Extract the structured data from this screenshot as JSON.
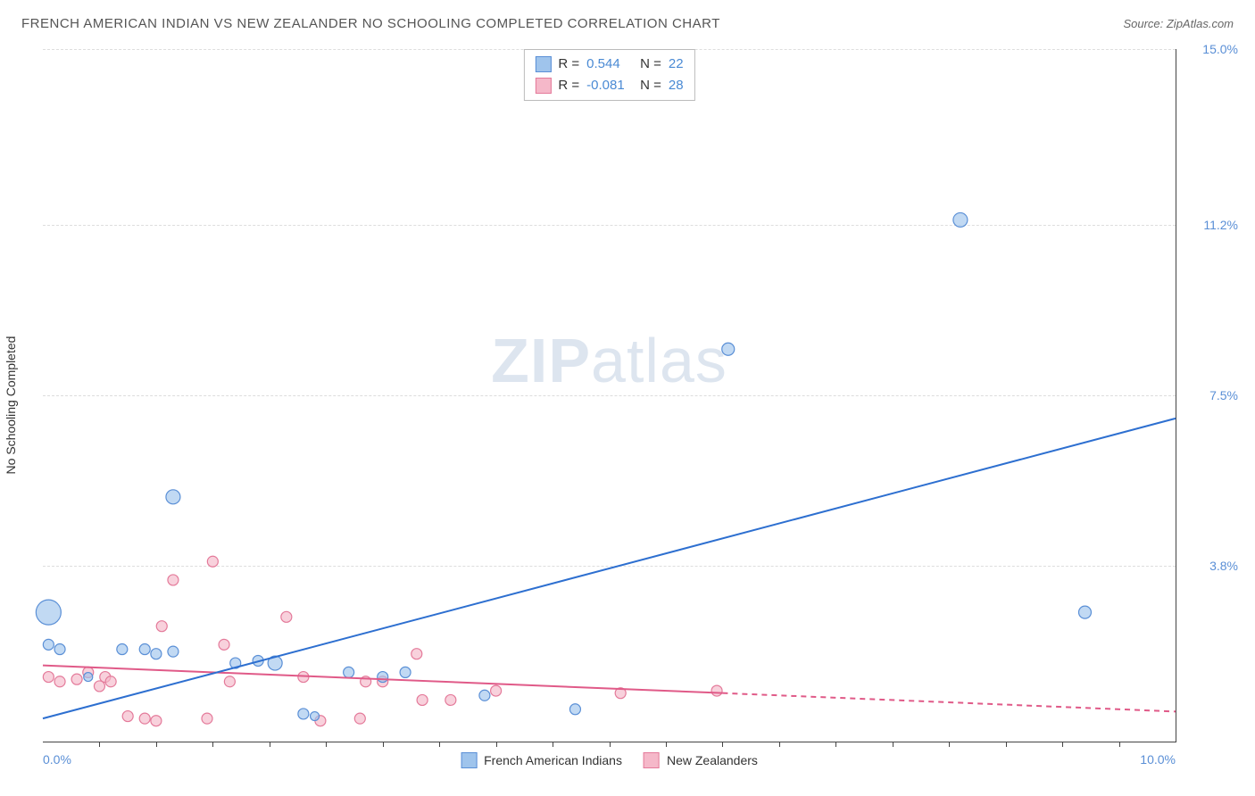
{
  "chart": {
    "type": "scatter",
    "title": "FRENCH AMERICAN INDIAN VS NEW ZEALANDER NO SCHOOLING COMPLETED CORRELATION CHART",
    "source": "Source: ZipAtlas.com",
    "ylabel": "No Schooling Completed",
    "watermark_a": "ZIP",
    "watermark_b": "atlas",
    "xlim": [
      0,
      10
    ],
    "ylim": [
      0,
      15
    ],
    "x_ticks": [
      0,
      10
    ],
    "x_tick_labels": [
      "0.0%",
      "10.0%"
    ],
    "y_ticks": [
      3.8,
      7.5,
      11.2,
      15.0
    ],
    "y_tick_labels": [
      "3.8%",
      "7.5%",
      "11.2%",
      "15.0%"
    ],
    "tick_color_blue": "#5a8fd6",
    "grid_color": "#dddddd",
    "minor_x_ticks": [
      0.5,
      1,
      1.5,
      2,
      2.5,
      3,
      3.5,
      4,
      4.5,
      5,
      5.5,
      6,
      6.5,
      7,
      7.5,
      8,
      8.5,
      9,
      9.5
    ],
    "series": [
      {
        "key": "blue",
        "name": "French American Indians",
        "fill": "#9fc4ec",
        "stroke": "#5a8fd6",
        "line_color": "#2d6fd0",
        "R": "0.544",
        "N": "22",
        "trend": {
          "x1": 0,
          "y1": 0.5,
          "x2": 10,
          "y2": 7.0
        },
        "points": [
          {
            "x": 0.05,
            "y": 2.1,
            "r": 6
          },
          {
            "x": 0.15,
            "y": 2.0,
            "r": 6
          },
          {
            "x": 0.7,
            "y": 2.0,
            "r": 6
          },
          {
            "x": 0.9,
            "y": 2.0,
            "r": 6
          },
          {
            "x": 1.0,
            "y": 1.9,
            "r": 6
          },
          {
            "x": 1.15,
            "y": 1.95,
            "r": 6
          },
          {
            "x": 1.15,
            "y": 5.3,
            "r": 8
          },
          {
            "x": 1.7,
            "y": 1.7,
            "r": 6
          },
          {
            "x": 1.9,
            "y": 1.75,
            "r": 6
          },
          {
            "x": 2.05,
            "y": 1.7,
            "r": 8
          },
          {
            "x": 2.3,
            "y": 0.6,
            "r": 6
          },
          {
            "x": 2.7,
            "y": 1.5,
            "r": 6
          },
          {
            "x": 3.0,
            "y": 1.4,
            "r": 6
          },
          {
            "x": 3.2,
            "y": 1.5,
            "r": 6
          },
          {
            "x": 3.9,
            "y": 1.0,
            "r": 6
          },
          {
            "x": 4.7,
            "y": 0.7,
            "r": 6
          },
          {
            "x": 6.05,
            "y": 8.5,
            "r": 7
          },
          {
            "x": 8.1,
            "y": 11.3,
            "r": 8
          },
          {
            "x": 9.2,
            "y": 2.8,
            "r": 7
          },
          {
            "x": 0.05,
            "y": 2.8,
            "r": 14
          },
          {
            "x": 0.4,
            "y": 1.4,
            "r": 5
          },
          {
            "x": 2.4,
            "y": 0.55,
            "r": 5
          }
        ]
      },
      {
        "key": "pink",
        "name": "New Zealanders",
        "fill": "#f5b8c9",
        "stroke": "#e47a9a",
        "line_color": "#e05a88",
        "R": "-0.081",
        "N": "28",
        "trend": {
          "x1": 0,
          "y1": 1.65,
          "x2": 6.0,
          "y2": 1.05
        },
        "trend_dash": {
          "x1": 6.0,
          "y1": 1.05,
          "x2": 10,
          "y2": 0.65
        },
        "points": [
          {
            "x": 0.05,
            "y": 1.4,
            "r": 6
          },
          {
            "x": 0.15,
            "y": 1.3,
            "r": 6
          },
          {
            "x": 0.3,
            "y": 1.35,
            "r": 6
          },
          {
            "x": 0.4,
            "y": 1.5,
            "r": 6
          },
          {
            "x": 0.5,
            "y": 1.2,
            "r": 6
          },
          {
            "x": 0.55,
            "y": 1.4,
            "r": 6
          },
          {
            "x": 0.6,
            "y": 1.3,
            "r": 6
          },
          {
            "x": 0.75,
            "y": 0.55,
            "r": 6
          },
          {
            "x": 0.9,
            "y": 0.5,
            "r": 6
          },
          {
            "x": 1.0,
            "y": 0.45,
            "r": 6
          },
          {
            "x": 1.05,
            "y": 2.5,
            "r": 6
          },
          {
            "x": 1.15,
            "y": 3.5,
            "r": 6
          },
          {
            "x": 1.45,
            "y": 0.5,
            "r": 6
          },
          {
            "x": 1.5,
            "y": 3.9,
            "r": 6
          },
          {
            "x": 1.6,
            "y": 2.1,
            "r": 6
          },
          {
            "x": 1.65,
            "y": 1.3,
            "r": 6
          },
          {
            "x": 2.15,
            "y": 2.7,
            "r": 6
          },
          {
            "x": 2.3,
            "y": 1.4,
            "r": 6
          },
          {
            "x": 2.45,
            "y": 0.45,
            "r": 6
          },
          {
            "x": 2.8,
            "y": 0.5,
            "r": 6
          },
          {
            "x": 2.85,
            "y": 1.3,
            "r": 6
          },
          {
            "x": 3.0,
            "y": 1.3,
            "r": 6
          },
          {
            "x": 3.3,
            "y": 1.9,
            "r": 6
          },
          {
            "x": 3.35,
            "y": 0.9,
            "r": 6
          },
          {
            "x": 3.6,
            "y": 0.9,
            "r": 6
          },
          {
            "x": 4.0,
            "y": 1.1,
            "r": 6
          },
          {
            "x": 5.1,
            "y": 1.05,
            "r": 6
          },
          {
            "x": 5.95,
            "y": 1.1,
            "r": 6
          }
        ]
      }
    ],
    "correlation_labels": {
      "R": "R =",
      "N": "N ="
    }
  }
}
